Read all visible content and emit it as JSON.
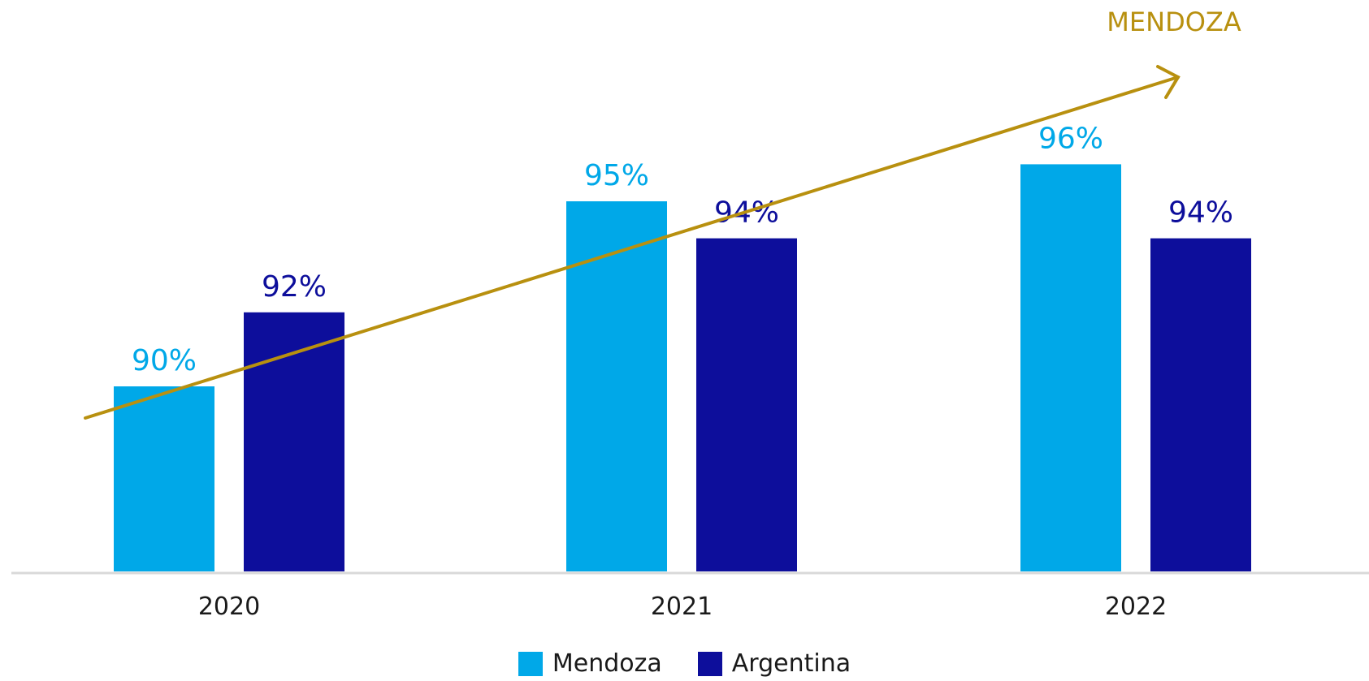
{
  "chart_data": {
    "type": "bar",
    "categories": [
      "2020",
      "2021",
      "2022"
    ],
    "series": [
      {
        "name": "Mendoza",
        "values": [
          90,
          95,
          96
        ],
        "labels": [
          "90%",
          "95%",
          "96%"
        ],
        "color": "#00A8E8"
      },
      {
        "name": "Argentina",
        "values": [
          92,
          94,
          94
        ],
        "labels": [
          "92%",
          "94%",
          "94%"
        ],
        "color": "#0D0E9B"
      }
    ],
    "ylim": [
      85,
      97
    ],
    "grid": false,
    "legend_placement": "bottom",
    "trend": {
      "label": "MENDOZA",
      "color": "#B8900F"
    },
    "axis_color": "#D9D9D9"
  }
}
